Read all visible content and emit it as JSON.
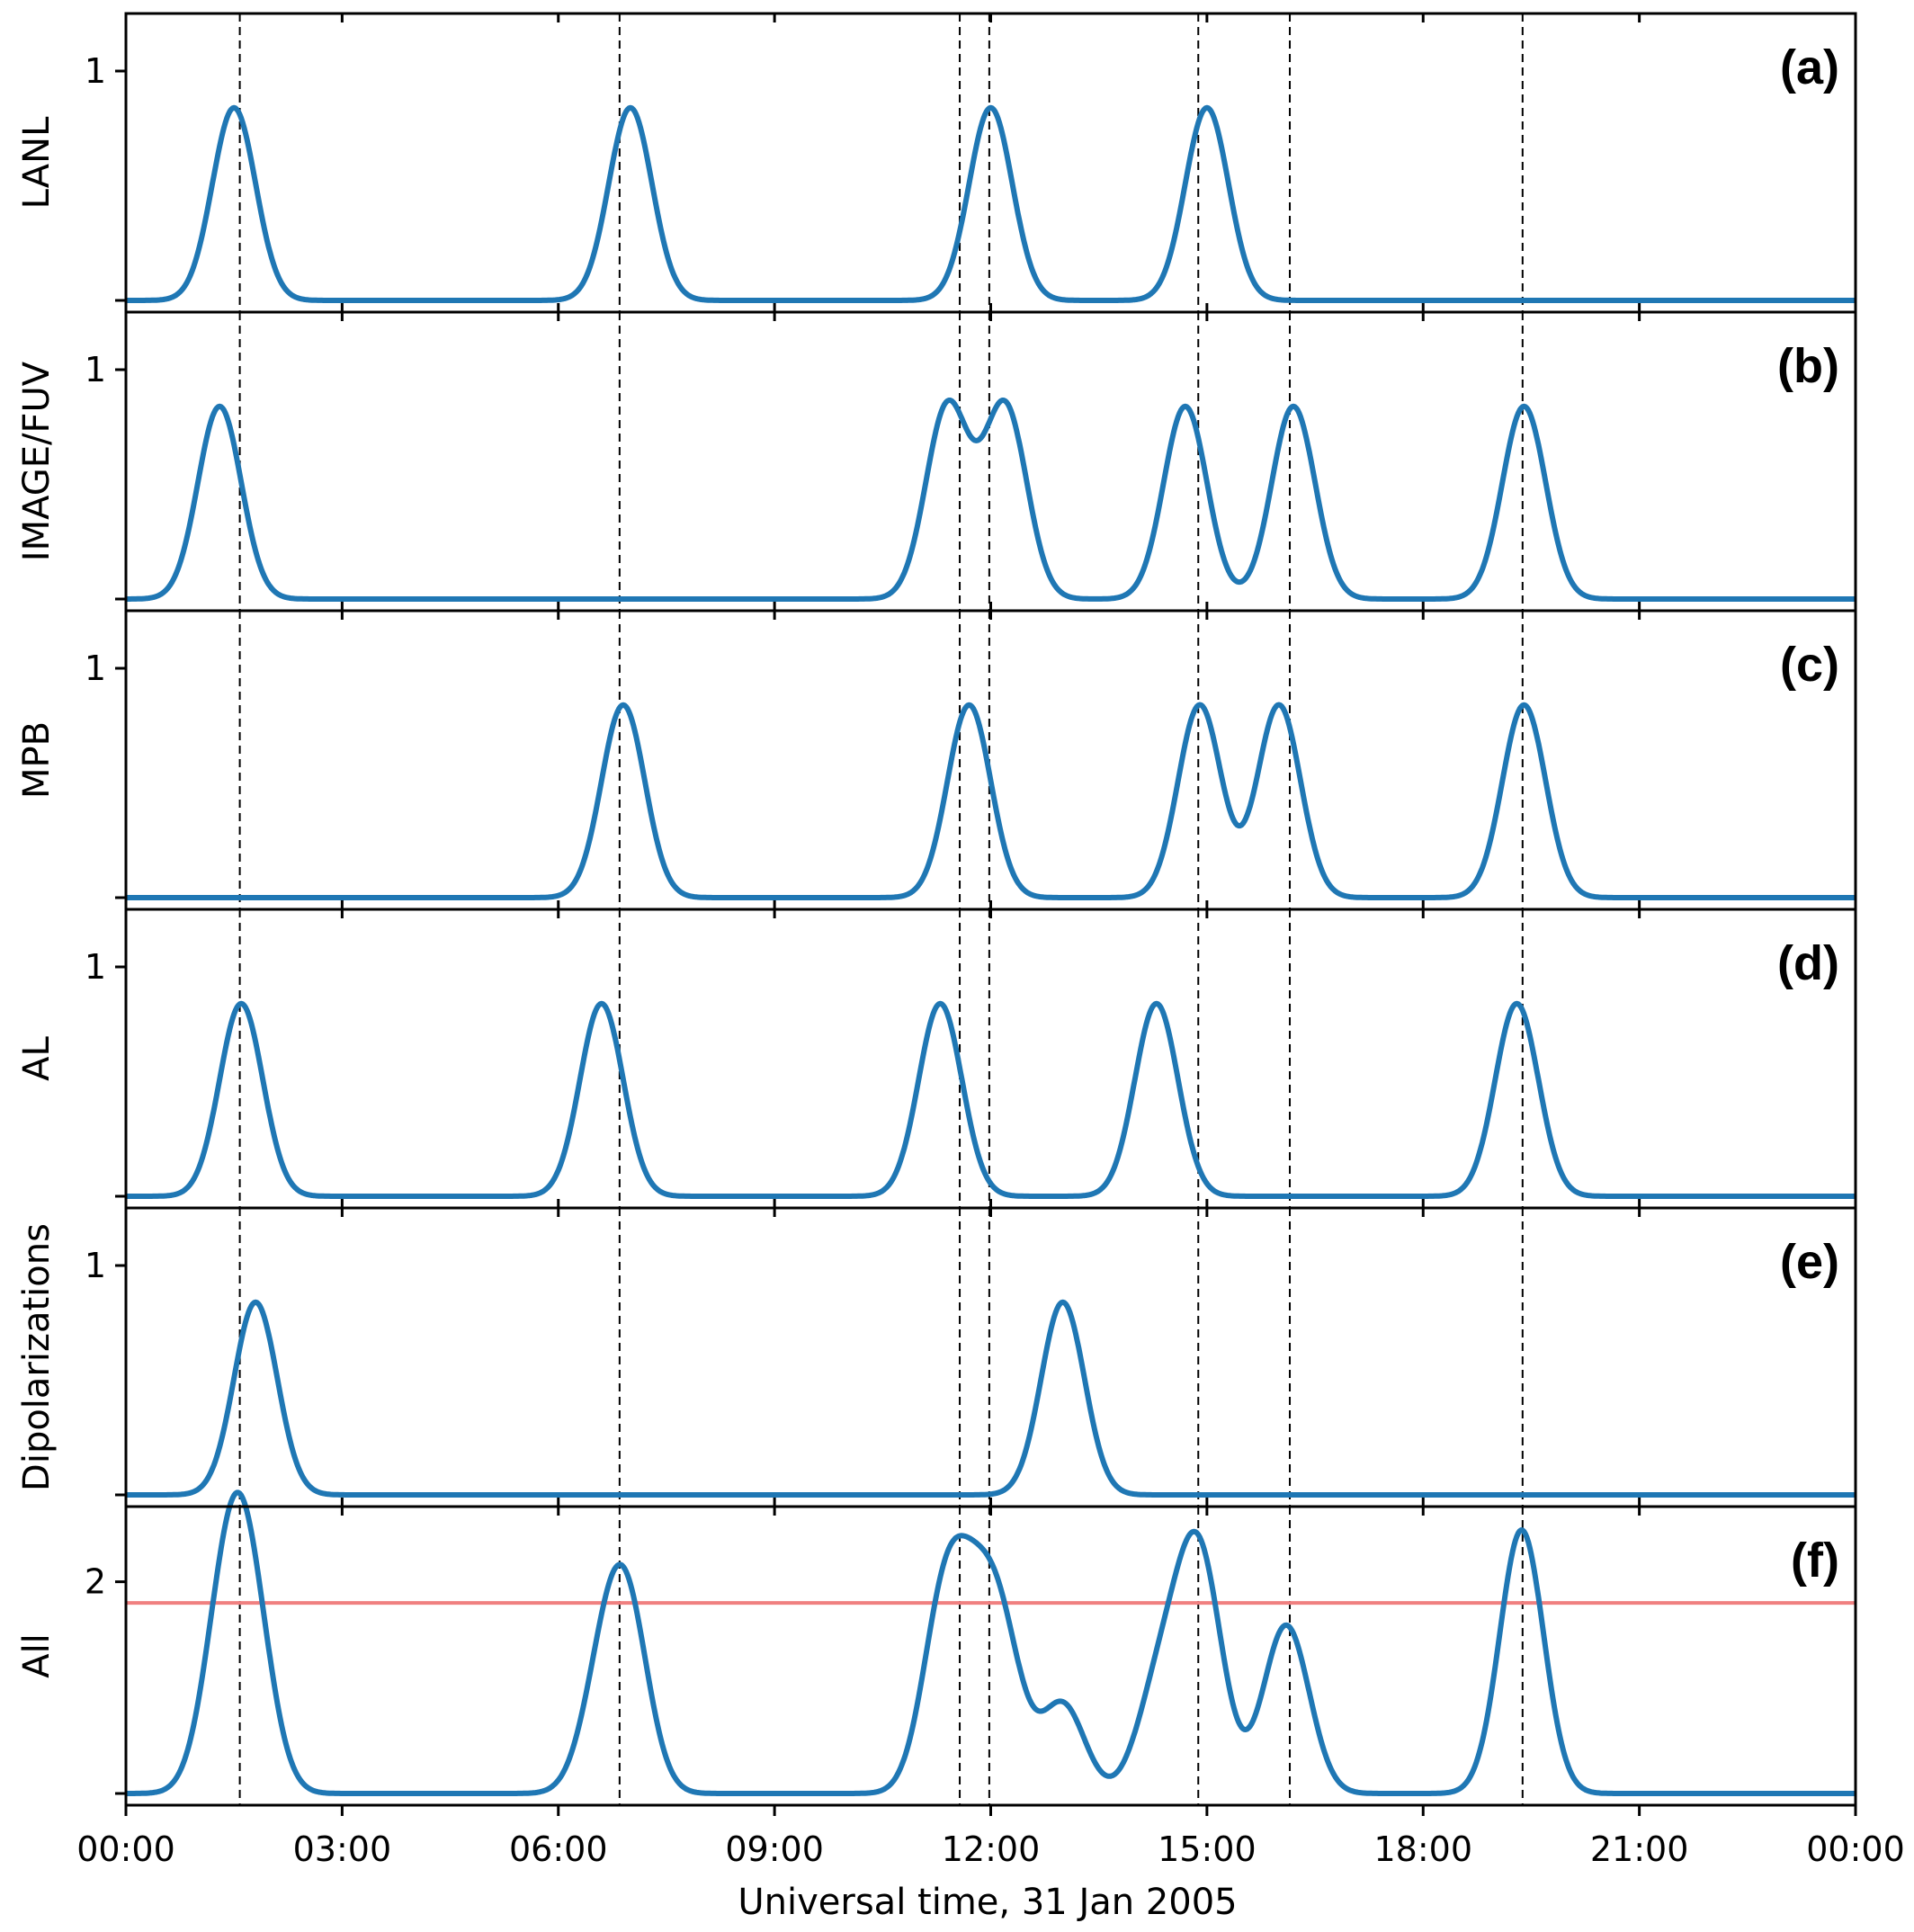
{
  "chart_data": {
    "type": "line",
    "title": "",
    "xlabel": "Universal time, 31 Jan 2005",
    "x_unit": "hours UT",
    "xlim": [
      0,
      24
    ],
    "x_ticks": [
      {
        "value": 0,
        "label": "00:00"
      },
      {
        "value": 3,
        "label": "03:00"
      },
      {
        "value": 6,
        "label": "06:00"
      },
      {
        "value": 9,
        "label": "09:00"
      },
      {
        "value": 12,
        "label": "12:00"
      },
      {
        "value": 15,
        "label": "15:00"
      },
      {
        "value": 18,
        "label": "18:00"
      },
      {
        "value": 21,
        "label": "21:00"
      },
      {
        "value": 24,
        "label": "00:00"
      }
    ],
    "vertical_dashed_lines": [
      1.58,
      6.85,
      11.57,
      11.98,
      14.88,
      16.15,
      19.38
    ],
    "line_color": "#1f77b4",
    "threshold_color": "#f08080",
    "peak_width_sigma": 0.3,
    "panels": [
      {
        "letter": "(a)",
        "ylabel": "LANL",
        "ylim": [
          0,
          1.2
        ],
        "yticks": [
          1
        ],
        "ytick_labels": [
          "1"
        ],
        "peaks": [
          {
            "t": 1.5,
            "a": 0.84
          },
          {
            "t": 7.0,
            "a": 0.84
          },
          {
            "t": 12.0,
            "a": 0.84
          },
          {
            "t": 15.0,
            "a": 0.84
          }
        ]
      },
      {
        "letter": "(b)",
        "ylabel": "IMAGE/FUV",
        "ylim": [
          0,
          1.2
        ],
        "yticks": [
          1
        ],
        "ytick_labels": [
          "1"
        ],
        "peaks": [
          {
            "t": 1.3,
            "a": 0.84
          },
          {
            "t": 11.4,
            "a": 0.84
          },
          {
            "t": 12.2,
            "a": 0.84
          },
          {
            "t": 14.7,
            "a": 0.84
          },
          {
            "t": 16.2,
            "a": 0.84
          },
          {
            "t": 19.4,
            "a": 0.84
          }
        ]
      },
      {
        "letter": "(c)",
        "ylabel": "MPB",
        "ylim": [
          0,
          1.2
        ],
        "yticks": [
          1
        ],
        "ytick_labels": [
          "1"
        ],
        "peaks": [
          {
            "t": 6.9,
            "a": 0.84
          },
          {
            "t": 11.7,
            "a": 0.84
          },
          {
            "t": 14.9,
            "a": 0.84
          },
          {
            "t": 16.0,
            "a": 0.84
          },
          {
            "t": 19.4,
            "a": 0.84
          }
        ]
      },
      {
        "letter": "(d)",
        "ylabel": "AL",
        "ylim": [
          0,
          1.2
        ],
        "yticks": [
          1
        ],
        "ytick_labels": [
          "1"
        ],
        "peaks": [
          {
            "t": 1.6,
            "a": 0.84
          },
          {
            "t": 6.6,
            "a": 0.84
          },
          {
            "t": 11.3,
            "a": 0.84
          },
          {
            "t": 14.3,
            "a": 0.84
          },
          {
            "t": 19.3,
            "a": 0.84
          }
        ]
      },
      {
        "letter": "(e)",
        "ylabel": "Dipolarizations",
        "ylim": [
          0,
          1.2
        ],
        "yticks": [
          1
        ],
        "ytick_labels": [
          "1"
        ],
        "peaks": [
          {
            "t": 1.8,
            "a": 0.84
          },
          {
            "t": 13.0,
            "a": 0.84
          }
        ]
      },
      {
        "letter": "(f)",
        "ylabel": "All",
        "ylim": [
          0,
          2.6
        ],
        "yticks": [
          2
        ],
        "ytick_labels": [
          "2"
        ],
        "sum_of_panels": [
          "(a)",
          "(b)",
          "(c)",
          "(d)",
          "(e)"
        ],
        "threshold": 1.8
      }
    ]
  }
}
